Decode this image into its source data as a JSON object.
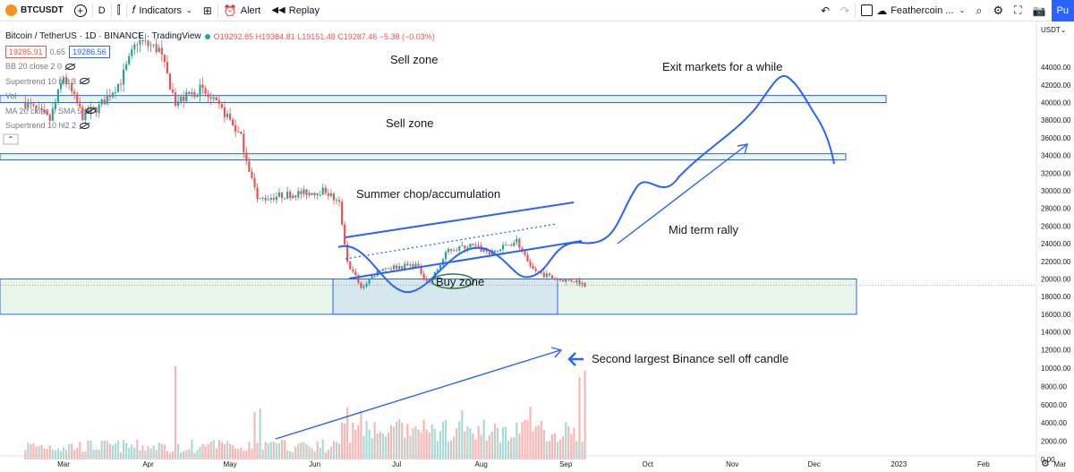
{
  "toolbar": {
    "symbol": "BTCUSDT",
    "interval": "D",
    "indicators_label": "Indicators",
    "alert_label": "Alert",
    "replay_label": "Replay",
    "layout_name": "Feathercoin ...",
    "publish_label": "Pu"
  },
  "legend": {
    "title": "Bitcoin / TetherUS · 1D · BINANCE · TradingView",
    "ohlc": "O19292.85 H19384.81 L19151.48 C19287.46 −5.38 (−0.03%)",
    "bid": "19285.91",
    "spread": "0.65",
    "ask": "19286.56",
    "indicators": [
      "BB 20 close 2 0",
      "Supertrend 10 hl2 3",
      "Vol",
      "MA 20 close 0 SMA 5",
      "Supertrend 10 hl2 2"
    ]
  },
  "annotations": {
    "sell_zone_1": "Sell zone",
    "sell_zone_2": "Sell zone",
    "exit": "Exit markets for a while",
    "summer": "Summer chop/accumulation",
    "buy": "Buy zone",
    "rally": "Mid term rally",
    "selloff": "Second largest Binance sell off candle"
  },
  "colors": {
    "up": "#26a69a",
    "down": "#ef5350",
    "drawing": "#2962ff",
    "zone_fill": "#e8f5e9",
    "accent": "#2962ff"
  },
  "chart_data": {
    "type": "candlestick",
    "currency_label": "USDT",
    "y_ticks": [
      0,
      2000,
      4000,
      6000,
      8000,
      10000,
      12000,
      14000,
      16000,
      18000,
      20000,
      22000,
      24000,
      26000,
      28000,
      30000,
      32000,
      34000,
      36000,
      38000,
      40000,
      42000,
      44000
    ],
    "x_months": [
      "Mar",
      "Apr",
      "May",
      "Jun",
      "Jul",
      "Aug",
      "Sep",
      "Oct",
      "Nov",
      "Dec",
      "2023",
      "Feb",
      "Mar"
    ],
    "anchor_prices": [
      {
        "date": "2022-02-15",
        "price": 40000
      },
      {
        "date": "2022-02-24",
        "price": 38000
      },
      {
        "date": "2022-03-01",
        "price": 43000
      },
      {
        "date": "2022-03-08",
        "price": 38500
      },
      {
        "date": "2022-03-14",
        "price": 39500
      },
      {
        "date": "2022-03-22",
        "price": 42500
      },
      {
        "date": "2022-03-28",
        "price": 47000
      },
      {
        "date": "2022-04-05",
        "price": 46000
      },
      {
        "date": "2022-04-11",
        "price": 40000
      },
      {
        "date": "2022-04-20",
        "price": 41500
      },
      {
        "date": "2022-04-30",
        "price": 38500
      },
      {
        "date": "2022-05-05",
        "price": 36000
      },
      {
        "date": "2022-05-11",
        "price": 29000
      },
      {
        "date": "2022-05-20",
        "price": 29500
      },
      {
        "date": "2022-06-05",
        "price": 30000
      },
      {
        "date": "2022-06-10",
        "price": 28500
      },
      {
        "date": "2022-06-13",
        "price": 22000
      },
      {
        "date": "2022-06-18",
        "price": 19000
      },
      {
        "date": "2022-06-25",
        "price": 21200
      },
      {
        "date": "2022-07-08",
        "price": 21600
      },
      {
        "date": "2022-07-13",
        "price": 19500
      },
      {
        "date": "2022-07-20",
        "price": 23300
      },
      {
        "date": "2022-07-28",
        "price": 23800
      },
      {
        "date": "2022-08-05",
        "price": 22900
      },
      {
        "date": "2022-08-14",
        "price": 24400
      },
      {
        "date": "2022-08-19",
        "price": 21200
      },
      {
        "date": "2022-08-28",
        "price": 20000
      },
      {
        "date": "2022-09-05",
        "price": 19800
      },
      {
        "date": "2022-09-08",
        "price": 19300
      }
    ],
    "volume_spikes": [
      {
        "date": "2022-04-11",
        "volume": 10200
      },
      {
        "date": "2022-05-10",
        "volume": 5200
      },
      {
        "date": "2022-05-12",
        "volume": 5600
      },
      {
        "date": "2022-06-13",
        "volume": 5700
      },
      {
        "date": "2022-06-18",
        "volume": 5300
      },
      {
        "date": "2022-07-25",
        "volume": 5400
      },
      {
        "date": "2022-08-19",
        "volume": 5800
      },
      {
        "date": "2022-09-06",
        "volume": 9000
      },
      {
        "date": "2022-09-08",
        "volume": 9700
      }
    ],
    "zones": [
      {
        "label": "Sell zone",
        "from": 40000,
        "to": 40800
      },
      {
        "label": "Sell zone",
        "from": 33500,
        "to": 34200
      },
      {
        "label": "Buy zone",
        "from": 16000,
        "to": 20000
      }
    ]
  }
}
